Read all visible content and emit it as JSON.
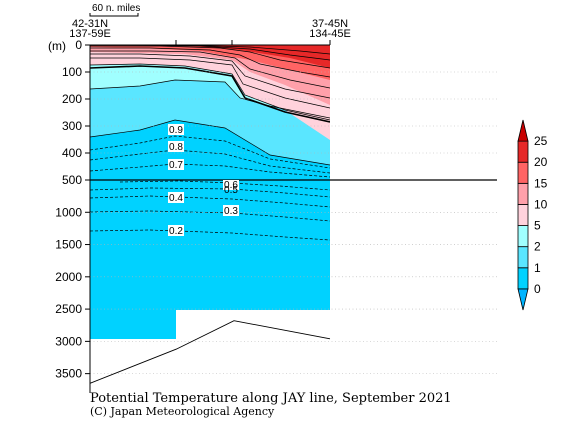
{
  "chart_data": {
    "type": "contour",
    "title": "Potential Temperature along JAY line, September 2021",
    "credit": "(C) Japan Meteorological Agency",
    "y_unit_label": "(m)",
    "scale_bar_label": "60 n. miles",
    "endpoints": {
      "left": {
        "lat": "42-31N",
        "lon": "137-59E"
      },
      "right": {
        "lat": "37-45N",
        "lon": "134-45E"
      }
    },
    "y_ticks_upper": [
      "0",
      "100",
      "200",
      "300",
      "400",
      "500"
    ],
    "y_ticks_lower": [
      "1000",
      "1500",
      "2000",
      "2500",
      "3000",
      "3500"
    ],
    "upper_depth_range": [
      0,
      500
    ],
    "lower_depth_range": [
      500,
      3800
    ],
    "colorbar": {
      "ticks": [
        "0",
        "1",
        "2",
        "5",
        "10",
        "15",
        "20",
        "25"
      ],
      "colors": [
        "#00b4ff",
        "#00d2ff",
        "#5ae6ff",
        "#a0ffff",
        "#ffd2dc",
        "#ffa0aa",
        "#ff6464",
        "#e62828",
        "#c80000"
      ]
    },
    "contour_labels_deep": [
      "0.9",
      "0.8",
      "0.7",
      "0.6",
      "0.5",
      "0.4",
      "0.3",
      "0.2"
    ],
    "bottom_profile": [
      {
        "distance_frac": 0.0,
        "depth": 3650
      },
      {
        "distance_frac": 0.36,
        "depth": 3120
      },
      {
        "distance_frac": 0.6,
        "depth": 2680
      },
      {
        "distance_frac": 1.0,
        "depth": 2960
      }
    ],
    "grid": true
  }
}
